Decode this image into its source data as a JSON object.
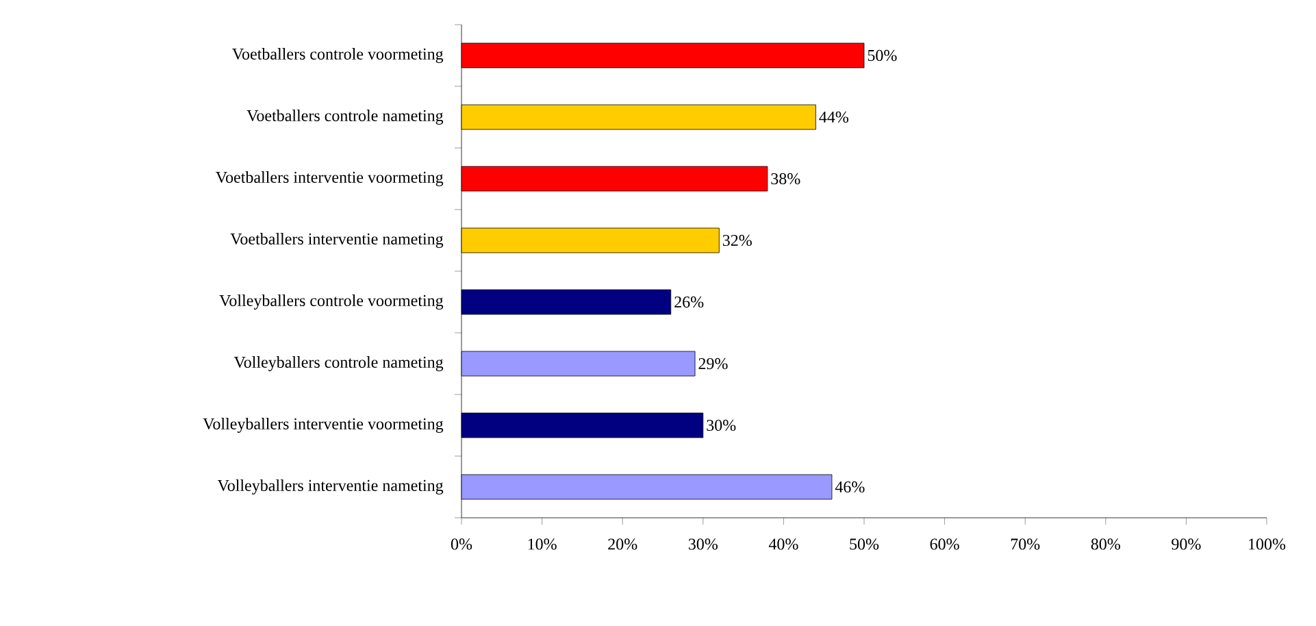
{
  "chart_data": {
    "type": "bar",
    "orientation": "horizontal",
    "categories": [
      "Voetballers controle voormeting",
      "Voetballers controle nameting",
      "Voetballers interventie voormeting",
      "Voetballers interventie nameting",
      "Volleyballers controle voormeting",
      "Volleyballers controle nameting",
      "Volleyballers interventie voormeting",
      "Volleyballers interventie nameting"
    ],
    "values": [
      50,
      44,
      38,
      32,
      26,
      29,
      30,
      46
    ],
    "colors": [
      "#ff0000",
      "#ffcc00",
      "#ff0000",
      "#ffcc00",
      "#000080",
      "#9999ff",
      "#000080",
      "#9999ff"
    ],
    "value_labels": [
      "50%",
      "44%",
      "38%",
      "32%",
      "26%",
      "29%",
      "30%",
      "46%"
    ],
    "xlim": [
      0,
      100
    ],
    "xticks": [
      {
        "value": 0,
        "label": "0%"
      },
      {
        "value": 10,
        "label": "10%"
      },
      {
        "value": 20,
        "label": "20%"
      },
      {
        "value": 30,
        "label": "30%"
      },
      {
        "value": 40,
        "label": "40%"
      },
      {
        "value": 50,
        "label": "50%"
      },
      {
        "value": 60,
        "label": "60%"
      },
      {
        "value": 70,
        "label": "70%"
      },
      {
        "value": 80,
        "label": "80%"
      },
      {
        "value": 90,
        "label": "90%"
      },
      {
        "value": 100,
        "label": "100%"
      }
    ]
  }
}
